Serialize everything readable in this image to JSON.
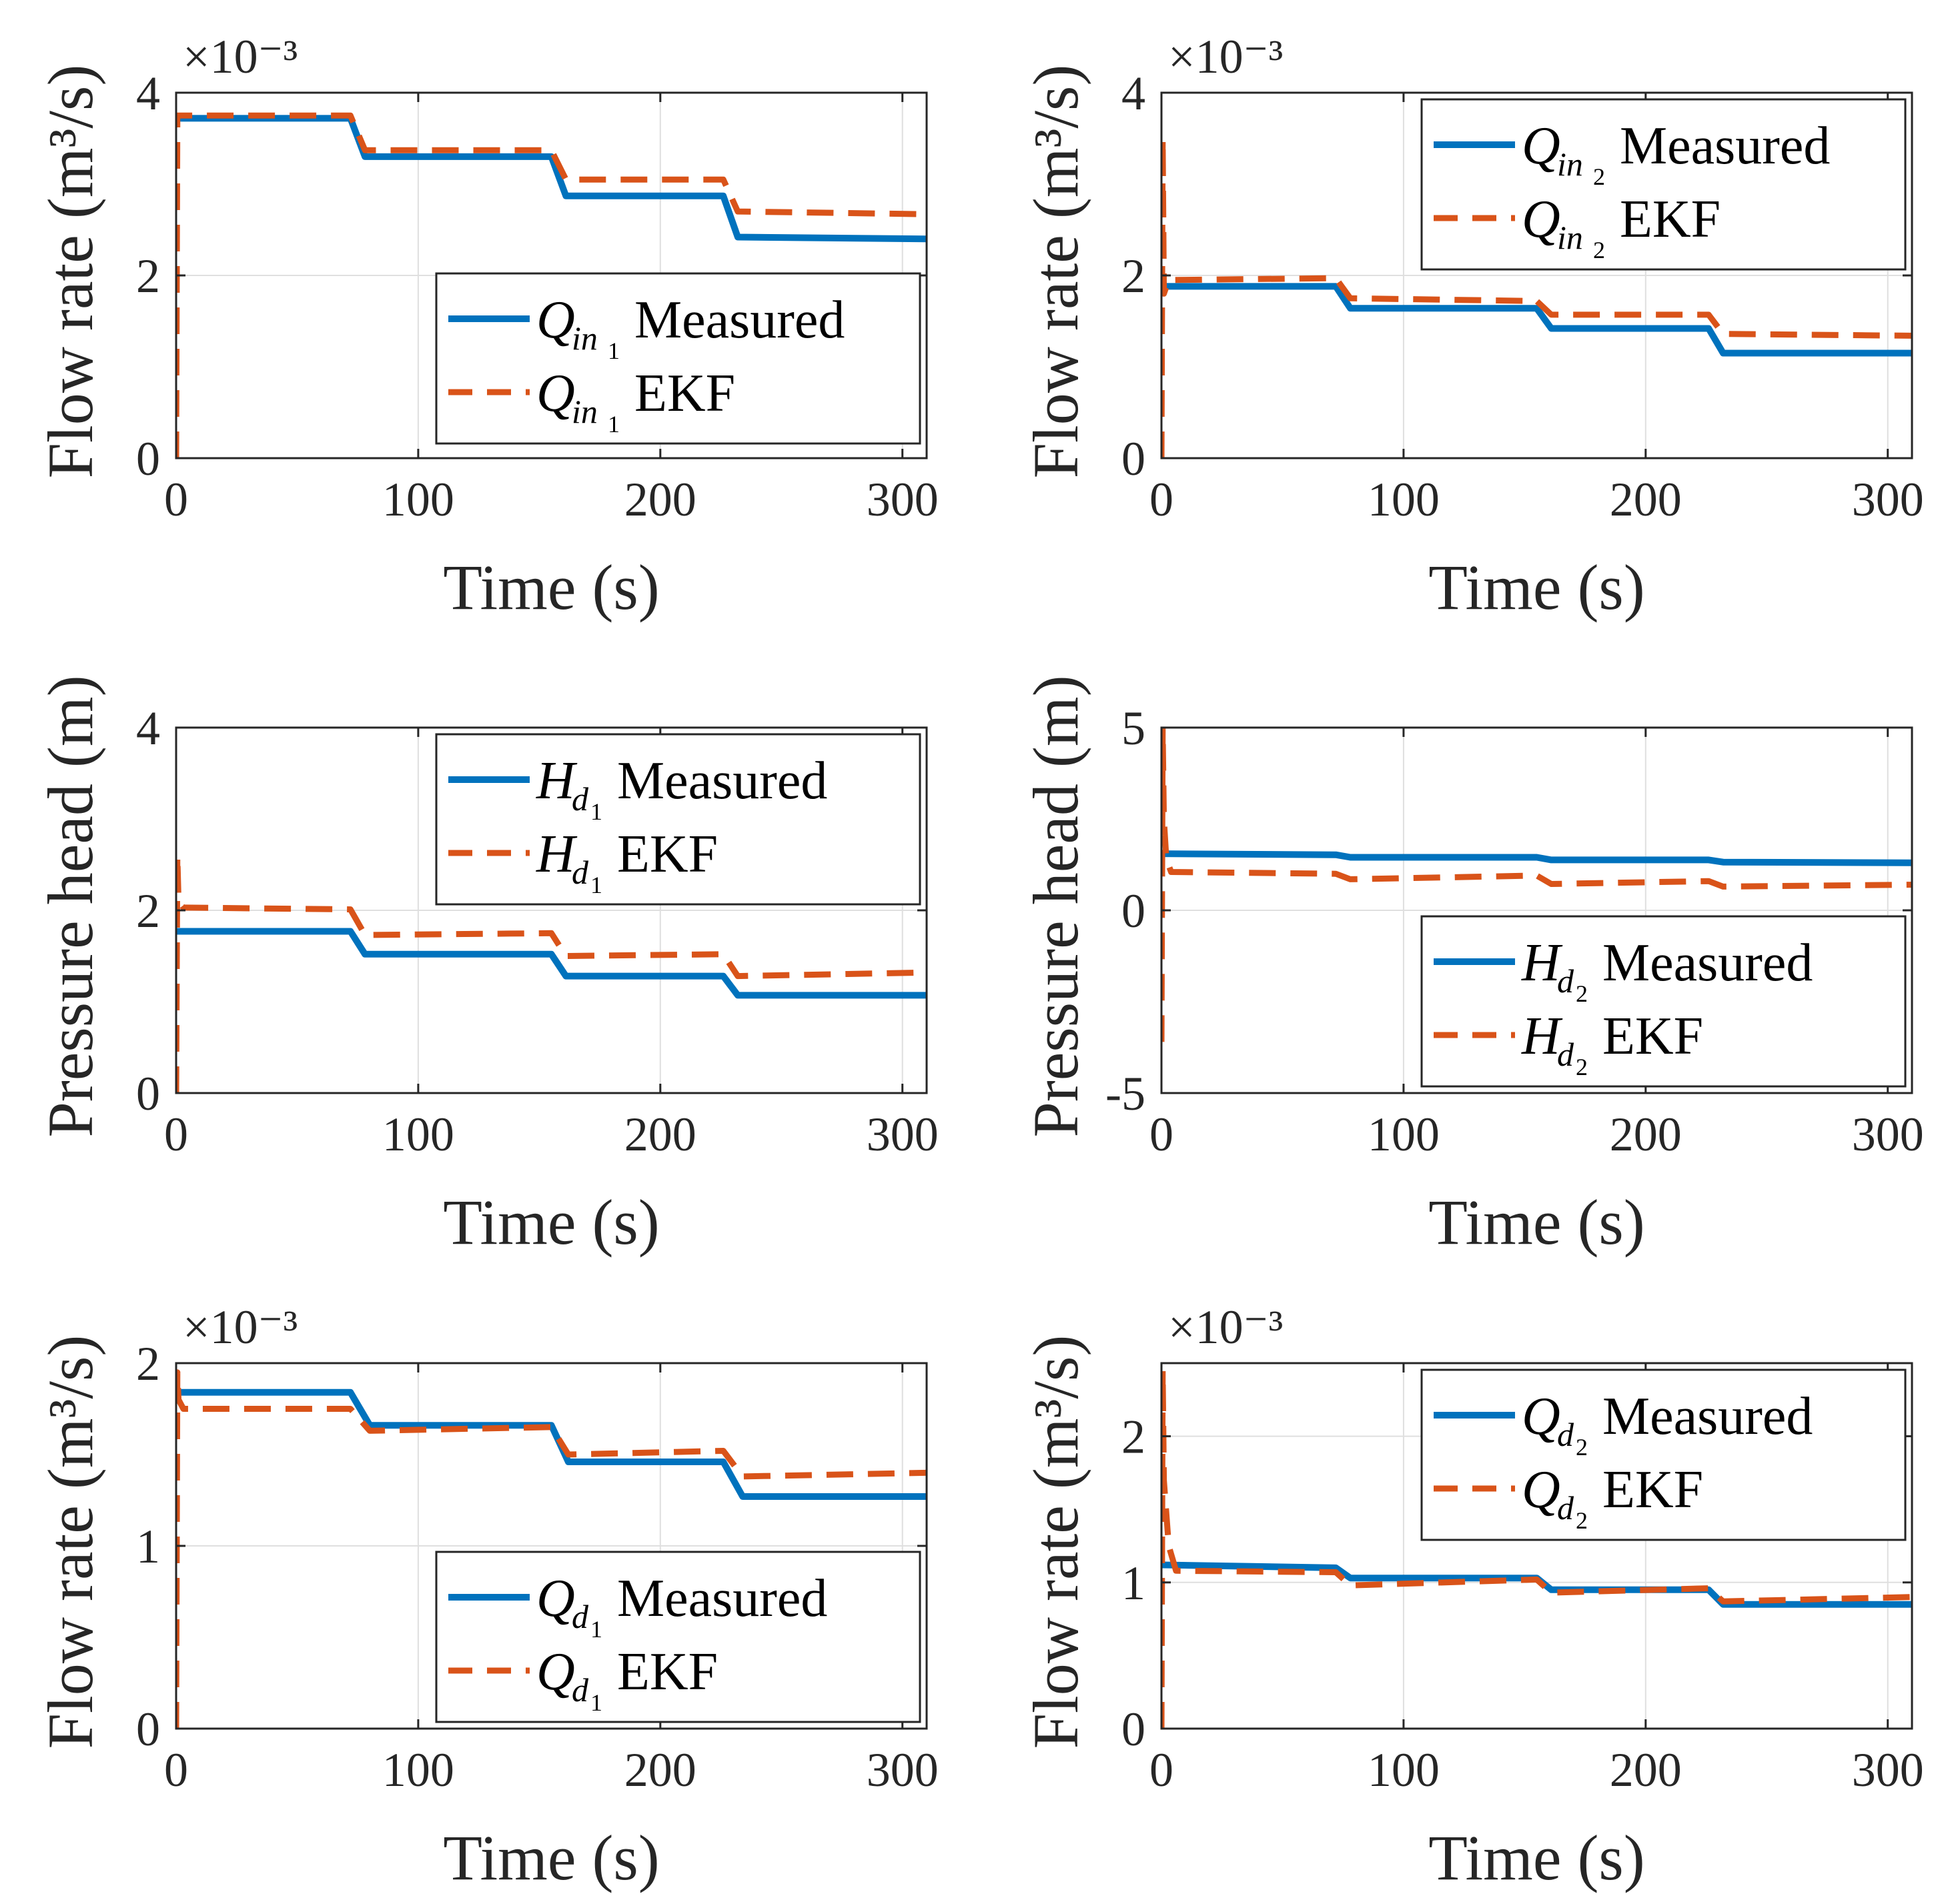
{
  "figure": {
    "colors": {
      "measured": "#0072BD",
      "ekf": "#D95319",
      "axis": "#262626",
      "grid": "#dfdfdf"
    }
  },
  "chart_data": [
    {
      "type": "line",
      "id": "q-in1",
      "xlabel": "Time (s)",
      "ylabel": "Flow rate (m³/s)",
      "exponent": "×10⁻³",
      "xlim": [
        0,
        310
      ],
      "ylim": [
        0,
        4
      ],
      "xticks": [
        "0",
        "100",
        "200",
        "300"
      ],
      "xtick_values": [
        0,
        100,
        200,
        300
      ],
      "yticks": [
        "0",
        "2",
        "4"
      ],
      "ytick_values": [
        0,
        2,
        4
      ],
      "legend_position": "right",
      "series": [
        {
          "name": "Q_in1 Measured",
          "symbol": "Q",
          "sub": "in",
          "subsub": "1",
          "label": "Measured",
          "style": "solid",
          "x": [
            0,
            72,
            78,
            155,
            161,
            226,
            232,
            310
          ],
          "y": [
            3.72,
            3.72,
            3.3,
            3.3,
            2.87,
            2.87,
            2.42,
            2.4
          ]
        },
        {
          "name": "Q_in1 EKF",
          "symbol": "Q",
          "sub": "in",
          "subsub": "1",
          "label": "EKF",
          "style": "dashed",
          "x": [
            0,
            0.5,
            1,
            2,
            72,
            78,
            155,
            161,
            226,
            232,
            310
          ],
          "y": [
            0,
            3.75,
            3.75,
            3.75,
            3.75,
            3.37,
            3.37,
            3.05,
            3.05,
            2.7,
            2.67
          ]
        }
      ]
    },
    {
      "type": "line",
      "id": "q-in2",
      "xlabel": "Time (s)",
      "ylabel": "Flow rate (m³/s)",
      "exponent": "×10⁻³",
      "xlim": [
        0,
        310
      ],
      "ylim": [
        0,
        4
      ],
      "xticks": [
        "0",
        "100",
        "200",
        "300"
      ],
      "xtick_values": [
        0,
        100,
        200,
        300
      ],
      "yticks": [
        "0",
        "2",
        "4"
      ],
      "ytick_values": [
        0,
        2,
        4
      ],
      "legend_position": "top-right",
      "series": [
        {
          "name": "Q_in2 Measured",
          "symbol": "Q",
          "sub": "in",
          "subsub": "2",
          "label": "Measured",
          "style": "solid",
          "x": [
            0,
            72,
            78,
            155,
            161,
            226,
            232,
            310
          ],
          "y": [
            1.88,
            1.88,
            1.64,
            1.64,
            1.42,
            1.42,
            1.15,
            1.15
          ]
        },
        {
          "name": "Q_in2 EKF",
          "symbol": "Q",
          "sub": "in",
          "subsub": "2",
          "label": "EKF",
          "style": "dashed",
          "x": [
            0,
            0.5,
            1,
            3,
            72,
            78,
            155,
            161,
            226,
            232,
            310
          ],
          "y": [
            0,
            3.5,
            1.8,
            1.95,
            1.97,
            1.75,
            1.72,
            1.57,
            1.57,
            1.36,
            1.34
          ]
        }
      ]
    },
    {
      "type": "line",
      "id": "h-d1",
      "xlabel": "Time (s)",
      "ylabel": "Pressure head (m)",
      "exponent": "",
      "xlim": [
        0,
        310
      ],
      "ylim": [
        0,
        4
      ],
      "xticks": [
        "0",
        "100",
        "200",
        "300"
      ],
      "xtick_values": [
        0,
        100,
        200,
        300
      ],
      "yticks": [
        "0",
        "2",
        "4"
      ],
      "ytick_values": [
        0,
        2,
        4
      ],
      "legend_position": "top-right",
      "series": [
        {
          "name": "H_d1 Measured",
          "symbol": "H",
          "sub": "d",
          "subsub": "1",
          "label": "Measured",
          "style": "solid",
          "x": [
            0,
            72,
            78,
            155,
            161,
            226,
            232,
            310
          ],
          "y": [
            1.77,
            1.77,
            1.52,
            1.52,
            1.28,
            1.28,
            1.07,
            1.07
          ]
        },
        {
          "name": "H_d1 EKF",
          "symbol": "H",
          "sub": "d",
          "subsub": "1",
          "label": "EKF",
          "style": "dashed",
          "x": [
            0,
            0.5,
            1,
            3,
            72,
            78,
            155,
            161,
            226,
            232,
            310
          ],
          "y": [
            0,
            2.6,
            2.1,
            2.03,
            2.01,
            1.73,
            1.75,
            1.5,
            1.52,
            1.28,
            1.32
          ]
        }
      ]
    },
    {
      "type": "line",
      "id": "h-d2",
      "xlabel": "Time (s)",
      "ylabel": "Pressure head (m)",
      "exponent": "",
      "xlim": [
        0,
        310
      ],
      "ylim": [
        -5,
        5
      ],
      "xticks": [
        "0",
        "100",
        "200",
        "300"
      ],
      "xtick_values": [
        0,
        100,
        200,
        300
      ],
      "yticks": [
        "-5",
        "0",
        "5"
      ],
      "ytick_values": [
        -5,
        0,
        5
      ],
      "legend_position": "bottom-right",
      "series": [
        {
          "name": "H_d2 Measured",
          "symbol": "H",
          "sub": "d",
          "subsub": "2",
          "label": "Measured",
          "style": "solid",
          "x": [
            0,
            72,
            78,
            155,
            161,
            226,
            232,
            310
          ],
          "y": [
            1.55,
            1.52,
            1.45,
            1.45,
            1.38,
            1.38,
            1.32,
            1.3
          ]
        },
        {
          "name": "H_d2 EKF",
          "symbol": "H",
          "sub": "d",
          "subsub": "2",
          "label": "EKF",
          "style": "dashed",
          "x": [
            0,
            0.5,
            1,
            2,
            4,
            72,
            78,
            155,
            161,
            226,
            232,
            310
          ],
          "y": [
            -3.6,
            5.0,
            2.5,
            1.4,
            1.05,
            1.0,
            0.85,
            0.95,
            0.72,
            0.8,
            0.65,
            0.7
          ]
        }
      ]
    },
    {
      "type": "line",
      "id": "q-d1",
      "xlabel": "Time (s)",
      "ylabel": "Flow rate (m³/s)",
      "exponent": "×10⁻³",
      "xlim": [
        0,
        310
      ],
      "ylim": [
        0,
        2
      ],
      "xticks": [
        "0",
        "100",
        "200",
        "300"
      ],
      "xtick_values": [
        0,
        100,
        200,
        300
      ],
      "yticks": [
        "0",
        "1",
        "2"
      ],
      "ytick_values": [
        0,
        1,
        2
      ],
      "legend_position": "bottom-right",
      "series": [
        {
          "name": "Q_d1 Measured",
          "symbol": "Q",
          "sub": "d",
          "subsub": "1",
          "label": "Measured",
          "style": "solid",
          "x": [
            0,
            72,
            80,
            155,
            162,
            226,
            234,
            310
          ],
          "y": [
            1.84,
            1.84,
            1.66,
            1.66,
            1.46,
            1.46,
            1.27,
            1.27
          ]
        },
        {
          "name": "Q_d1 EKF",
          "symbol": "Q",
          "sub": "d",
          "subsub": "1",
          "label": "EKF",
          "style": "dashed",
          "x": [
            0,
            0.5,
            1,
            3,
            72,
            80,
            155,
            162,
            226,
            234,
            310
          ],
          "y": [
            0,
            1.95,
            1.8,
            1.75,
            1.75,
            1.63,
            1.65,
            1.5,
            1.52,
            1.38,
            1.4
          ]
        }
      ]
    },
    {
      "type": "line",
      "id": "q-d2",
      "xlabel": "Time (s)",
      "ylabel": "Flow rate (m³/s)",
      "exponent": "×10⁻³",
      "xlim": [
        0,
        310
      ],
      "ylim": [
        0,
        2.5
      ],
      "xticks": [
        "0",
        "100",
        "200",
        "300"
      ],
      "xtick_values": [
        0,
        100,
        200,
        300
      ],
      "yticks": [
        "0",
        "1",
        "2"
      ],
      "ytick_values": [
        0,
        1,
        2
      ],
      "legend_position": "top-right",
      "series": [
        {
          "name": "Q_d2 Measured",
          "symbol": "Q",
          "sub": "d",
          "subsub": "2",
          "label": "Measured",
          "style": "solid",
          "x": [
            0,
            72,
            78,
            155,
            161,
            226,
            232,
            310
          ],
          "y": [
            1.12,
            1.1,
            1.03,
            1.03,
            0.95,
            0.95,
            0.85,
            0.85
          ]
        },
        {
          "name": "Q_d2 EKF",
          "symbol": "Q",
          "sub": "d",
          "subsub": "2",
          "label": "EKF",
          "style": "dashed",
          "x": [
            0,
            0.5,
            1,
            3,
            6,
            72,
            78,
            155,
            161,
            226,
            232,
            310
          ],
          "y": [
            0,
            2.45,
            1.7,
            1.25,
            1.08,
            1.07,
            0.98,
            1.02,
            0.93,
            0.96,
            0.87,
            0.9
          ]
        }
      ]
    }
  ]
}
